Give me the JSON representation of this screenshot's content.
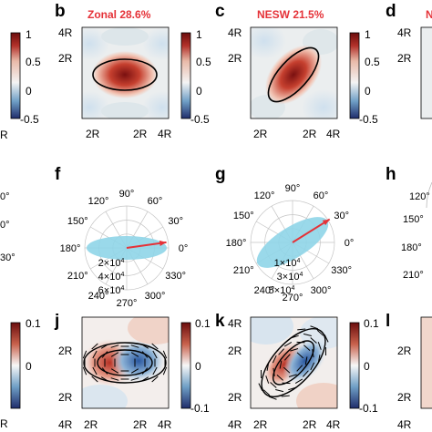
{
  "figure": {
    "panels": {
      "b": {
        "letter": "b",
        "title": "Zonal 28.6%",
        "y_ticks": [
          "4R",
          "2R"
        ],
        "x_ticks": [
          "2R",
          "2R",
          "4R"
        ]
      },
      "c": {
        "letter": "c",
        "title": "NESW 21.5%",
        "y_ticks": [
          "4R",
          "2R"
        ],
        "x_ticks": [
          "2R",
          "2R",
          "4R"
        ]
      },
      "d": {
        "letter": "d",
        "title_partial": "N"
      },
      "f": {
        "letter": "f",
        "angles": [
          "90°",
          "120°",
          "60°",
          "150°",
          "30°",
          "180°",
          "0°",
          "210°",
          "330°",
          "240°",
          "300°",
          "270°"
        ],
        "radii": [
          "2×10",
          "4×10",
          "6×10"
        ],
        "radius_exp": "4"
      },
      "g": {
        "letter": "g",
        "angles": [
          "90°",
          "120°",
          "60°",
          "150°",
          "30°",
          "180°",
          "0°",
          "210°",
          "330°",
          "240°",
          "300°",
          "270°"
        ],
        "radii": [
          "1×10",
          "3×10",
          "5×10"
        ],
        "radius_exp": "4"
      },
      "h": {
        "letter": "h"
      },
      "j": {
        "letter": "j",
        "y_ticks": [
          "2R",
          "2R",
          "4R"
        ],
        "x_ticks": [
          "4R",
          "2R",
          "2R",
          "4R"
        ]
      },
      "k": {
        "letter": "k",
        "y_ticks": [
          "4R",
          "2R",
          "2R"
        ],
        "x_ticks": [
          "4R",
          "2R",
          "2R",
          "4R"
        ]
      },
      "l": {
        "letter": "l"
      }
    },
    "colorbars_top": {
      "ticks": [
        "1",
        "0.5",
        "0",
        "-0.5"
      ]
    },
    "colorbars_bottom": {
      "ticks": [
        "0.1",
        "0",
        "-0.1"
      ]
    },
    "left_edge_fragments": {
      "top_bottom": "R",
      "mid": [
        "0°",
        "0°",
        "30°"
      ]
    },
    "colors": {
      "red": "#e53238",
      "cyan": "#8fd5e8",
      "deep_red": "#8b1e1a",
      "deep_blue": "#1f3b7a"
    }
  }
}
